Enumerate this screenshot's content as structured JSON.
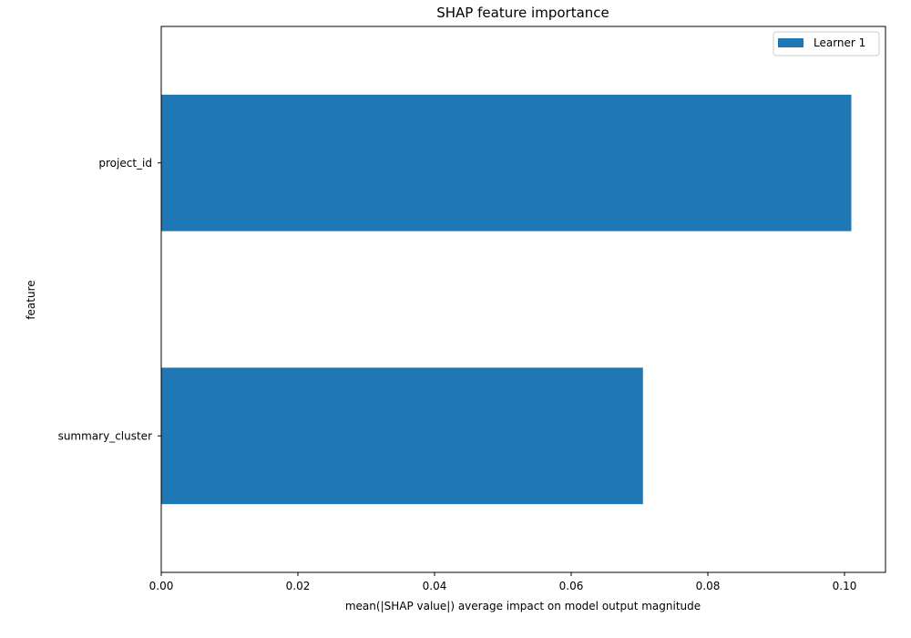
{
  "chart_data": {
    "type": "bar",
    "orientation": "horizontal",
    "title": "SHAP feature importance",
    "xlabel": "mean(|SHAP value|) average impact on model output magnitude",
    "ylabel": "feature",
    "categories": [
      "project_id",
      "summary_cluster"
    ],
    "series": [
      {
        "name": "Learner 1",
        "color": "#1f77b4",
        "values": [
          0.101,
          0.0705
        ]
      }
    ],
    "xlim": [
      0,
      0.106
    ],
    "xticks": [
      "0.00",
      "0.02",
      "0.04",
      "0.06",
      "0.08",
      "0.10"
    ],
    "xtick_values": [
      0,
      0.02,
      0.04,
      0.06,
      0.08,
      0.1
    ],
    "grid": false,
    "legend_position": "top-right"
  }
}
